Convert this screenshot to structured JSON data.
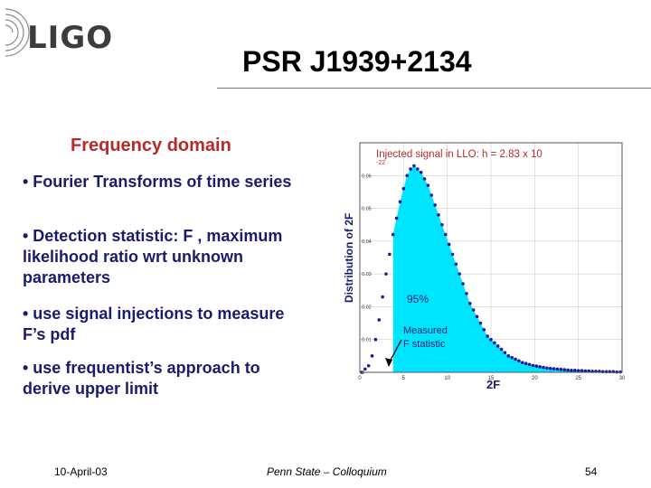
{
  "logo": {
    "text": "LIGO"
  },
  "slide": {
    "title": "PSR J1939+2134",
    "subtitle": "Frequency domain",
    "bullets": [
      "• Fourier Transforms of time series",
      "• Detection statistic: F , maximum likelihood ratio wrt unknown parameters",
      "• use signal injections to measure F’s pdf",
      "• use frequentist’s approach to derive upper limit"
    ]
  },
  "footer": {
    "date": "10-April-03",
    "venue": "Penn State – Colloquium",
    "page": "54"
  },
  "chart_data": {
    "type": "scatter",
    "title": "Injected signal in LLO: h = 2.83 x 10",
    "title_exponent": "-22",
    "xlabel": "2F",
    "ylabel": "Distribution of 2F",
    "xlim": [
      0,
      30
    ],
    "ylim": [
      0,
      0.07
    ],
    "grid": true,
    "fill_color": "#00e5ff",
    "point_color": "#1a1aa0",
    "x_ticks": [
      "0",
      "5",
      "10",
      "15",
      "20",
      "25",
      "30"
    ],
    "y_ticks": [
      "0",
      "0.01",
      "0.02",
      "0.03",
      "0.04",
      "0.05",
      "0.06"
    ],
    "annotations": {
      "percent": "95%",
      "measured": "Measured F statistic"
    },
    "measured_x": 2.0,
    "shaded_from_x": 3.5,
    "series": [
      {
        "x": [
          0.2,
          0.6,
          1.0,
          1.4,
          1.8,
          2.2,
          2.6,
          3.0,
          3.4,
          3.8,
          4.2,
          4.6,
          5.0,
          5.4,
          5.8,
          6.2,
          6.6,
          7.0,
          7.4,
          7.8,
          8.2,
          8.6,
          9.0,
          9.4,
          9.8,
          10.2,
          10.6,
          11.0,
          11.4,
          11.8,
          12.2,
          12.6,
          13.0,
          13.4,
          13.8,
          14.2,
          14.6,
          15.0,
          15.4,
          15.8,
          16.2,
          16.6,
          17.0,
          17.4,
          17.8,
          18.2,
          18.6,
          19.0,
          19.4,
          19.8,
          20.2,
          20.6,
          21.0,
          21.4,
          21.8,
          22.2,
          22.6,
          23.0,
          23.4,
          23.8,
          24.2,
          24.6,
          25.0,
          25.4,
          25.8,
          26.2,
          26.6,
          27.0,
          27.4,
          27.8,
          28.2,
          28.6,
          29.0,
          29.4,
          29.8
        ],
        "y": [
          0.0,
          0.001,
          0.002,
          0.005,
          0.01,
          0.016,
          0.023,
          0.03,
          0.036,
          0.042,
          0.047,
          0.052,
          0.056,
          0.06,
          0.062,
          0.063,
          0.062,
          0.061,
          0.059,
          0.057,
          0.054,
          0.051,
          0.048,
          0.045,
          0.042,
          0.039,
          0.036,
          0.033,
          0.03,
          0.027,
          0.024,
          0.021,
          0.019,
          0.017,
          0.015,
          0.013,
          0.011,
          0.01,
          0.009,
          0.008,
          0.007,
          0.006,
          0.005,
          0.0045,
          0.004,
          0.0035,
          0.003,
          0.0027,
          0.0024,
          0.0021,
          0.0019,
          0.0017,
          0.0015,
          0.0013,
          0.0012,
          0.0011,
          0.001,
          0.0009,
          0.0008,
          0.0007,
          0.0006,
          0.0006,
          0.0005,
          0.0005,
          0.0004,
          0.0004,
          0.0003,
          0.0003,
          0.0003,
          0.0002,
          0.0002,
          0.0002,
          0.0002,
          0.0001,
          0.0001
        ]
      }
    ]
  }
}
